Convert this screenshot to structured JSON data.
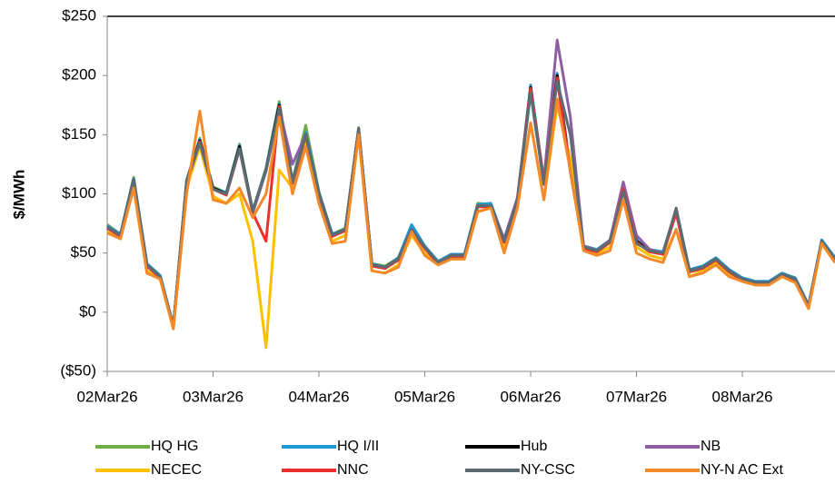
{
  "chart_data": {
    "type": "line",
    "y_label": "$/MWh",
    "categories": [
      "02Mar26",
      null,
      null,
      null,
      null,
      null,
      null,
      null,
      "03Mar26",
      null,
      null,
      null,
      null,
      null,
      null,
      null,
      "04Mar26",
      null,
      null,
      null,
      null,
      null,
      null,
      null,
      "05Mar26",
      null,
      null,
      null,
      null,
      null,
      null,
      null,
      "06Mar26",
      null,
      null,
      null,
      null,
      null,
      null,
      null,
      "07Mar26",
      null,
      null,
      null,
      null,
      null,
      null,
      null,
      "08Mar26",
      null,
      null,
      null,
      null,
      null,
      null,
      null
    ],
    "ylim": [
      -50,
      250
    ],
    "yticks": [
      {
        "value": -50,
        "label": "($50)"
      },
      {
        "value": 0,
        "label": "$0"
      },
      {
        "value": 50,
        "label": "$50"
      },
      {
        "value": 100,
        "label": "$100"
      },
      {
        "value": 150,
        "label": "$150"
      },
      {
        "value": 200,
        "label": "$200"
      },
      {
        "value": 250,
        "label": "$250"
      }
    ],
    "negative_tick_color": "#ff0000",
    "grid": false,
    "legend": "bottom",
    "series": [
      {
        "name": "HQ HG",
        "color": "#70ad47",
        "values": [
          74,
          66,
          114,
          41,
          31,
          -11,
          112,
          147,
          106,
          101,
          142,
          86,
          122,
          178,
          111,
          158,
          102,
          66,
          71,
          156,
          41,
          39,
          46,
          72,
          56,
          43,
          49,
          49,
          92,
          91,
          61,
          96,
          188,
          109,
          198,
          119,
          56,
          53,
          61,
          104,
          61,
          53,
          51,
          86,
          36,
          39,
          46,
          36,
          29,
          26,
          26,
          33,
          29,
          6,
          61,
          46
        ]
      },
      {
        "name": "HQ I/II",
        "color": "#1f9ad6",
        "values": [
          73,
          66,
          113,
          41,
          31,
          -12,
          111,
          146,
          105,
          101,
          141,
          85,
          121,
          176,
          110,
          152,
          101,
          66,
          70,
          155,
          41,
          38,
          46,
          74,
          56,
          43,
          49,
          49,
          91,
          92,
          61,
          96,
          192,
          111,
          202,
          121,
          56,
          53,
          61,
          106,
          61,
          53,
          51,
          86,
          36,
          39,
          46,
          36,
          29,
          26,
          26,
          33,
          29,
          6,
          61,
          46
        ]
      },
      {
        "name": "Hub",
        "color": "#000000",
        "values": [
          72,
          65,
          112,
          40,
          30,
          -12,
          110,
          145,
          105,
          100,
          140,
          85,
          120,
          175,
          110,
          150,
          100,
          65,
          70,
          155,
          40,
          38,
          45,
          70,
          55,
          42,
          48,
          48,
          90,
          90,
          60,
          95,
          190,
          110,
          200,
          120,
          55,
          52,
          60,
          105,
          60,
          52,
          50,
          85,
          35,
          38,
          45,
          35,
          28,
          25,
          25,
          32,
          28,
          5,
          60,
          45
        ]
      },
      {
        "name": "NB",
        "color": "#8e5ea2",
        "values": [
          72,
          65,
          111,
          40,
          30,
          -12,
          109,
          144,
          104,
          99,
          138,
          84,
          119,
          172,
          125,
          150,
          99,
          64,
          69,
          154,
          40,
          37,
          45,
          70,
          55,
          42,
          48,
          48,
          90,
          90,
          62,
          97,
          188,
          112,
          230,
          165,
          56,
          52,
          61,
          110,
          65,
          53,
          50,
          84,
          35,
          38,
          45,
          35,
          28,
          25,
          25,
          32,
          28,
          5,
          60,
          45
        ]
      },
      {
        "name": "NECEC",
        "color": "#ffc000",
        "values": [
          68,
          62,
          105,
          35,
          28,
          -14,
          105,
          140,
          98,
          92,
          100,
          60,
          -30,
          120,
          105,
          145,
          95,
          60,
          65,
          150,
          35,
          33,
          40,
          65,
          50,
          40,
          45,
          45,
          85,
          88,
          55,
          90,
          160,
          95,
          175,
          130,
          52,
          50,
          55,
          95,
          55,
          48,
          45,
          70,
          30,
          35,
          42,
          32,
          26,
          23,
          23,
          30,
          26,
          3,
          58,
          42
        ]
      },
      {
        "name": "NNC",
        "color": "#e8322a",
        "values": [
          71,
          64,
          111,
          39,
          29,
          -13,
          109,
          144,
          104,
          99,
          138,
          84,
          60,
          174,
          109,
          149,
          99,
          64,
          69,
          154,
          39,
          37,
          44,
          69,
          54,
          41,
          47,
          47,
          89,
          89,
          59,
          94,
          189,
          109,
          198,
          119,
          54,
          51,
          59,
          104,
          59,
          51,
          49,
          84,
          34,
          37,
          44,
          34,
          27,
          24,
          24,
          31,
          27,
          4,
          59,
          44
        ]
      },
      {
        "name": "NY-CSC",
        "color": "#5f6b73",
        "values": [
          72,
          65,
          112,
          40,
          30,
          -12,
          110,
          143,
          104,
          100,
          138,
          85,
          120,
          172,
          110,
          150,
          100,
          65,
          70,
          155,
          40,
          38,
          45,
          70,
          55,
          42,
          48,
          48,
          90,
          90,
          60,
          95,
          185,
          108,
          195,
          150,
          55,
          52,
          60,
          102,
          58,
          52,
          50,
          88,
          35,
          38,
          45,
          35,
          28,
          25,
          25,
          32,
          28,
          5,
          60,
          45
        ]
      },
      {
        "name": "NY-N AC Ext",
        "color": "#f4892a",
        "values": [
          67,
          62,
          105,
          33,
          28,
          -14,
          100,
          170,
          95,
          92,
          105,
          80,
          100,
          165,
          100,
          140,
          92,
          58,
          60,
          150,
          35,
          33,
          38,
          68,
          48,
          40,
          45,
          45,
          85,
          88,
          50,
          88,
          160,
          95,
          180,
          120,
          52,
          48,
          52,
          95,
          50,
          45,
          42,
          70,
          30,
          33,
          40,
          30,
          26,
          23,
          23,
          30,
          25,
          3,
          58,
          42
        ]
      }
    ]
  }
}
